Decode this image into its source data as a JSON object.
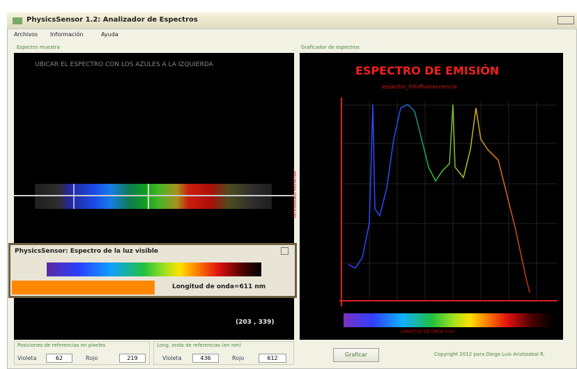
{
  "window": {
    "title": "PhysicsSensor 1.2: Analizador de Espectros"
  },
  "menu": [
    "Archivos",
    "Información",
    "Ayuda"
  ],
  "sample_panel": {
    "label": "Espectro muestra",
    "instruction": "UBICAR EL ESPECTRO CON LOS AZULES A LA IZQUIERDA",
    "coordinates": "(203 , 339)"
  },
  "popup": {
    "title": "PhysicsSensor: Espectro de la luz visible",
    "wavelength": "Longitud de onda=611 nm"
  },
  "graph_panel": {
    "label": "Graficador de espectros",
    "title": "ESPECTRO DE EMISIÓN",
    "subtitle": "espectro_fotofluorescencia",
    "y_label": "INTENSIDAD RELATIVA",
    "x_label": "LONGITUD DE ONDA (nm)"
  },
  "pixel_refs": {
    "label": "Posiciones de referencias en pixeles",
    "violet_label": "Violeta",
    "violet": 62,
    "red_label": "Rojo",
    "red": 219
  },
  "wavelength_refs": {
    "label": "Long. onda de referencias (en nm)",
    "violet_label": "Violeta",
    "violet": 436,
    "red_label": "Rojo",
    "red": 612
  },
  "button": "Graficar",
  "copyright": "Copyright 2012 para Diego Luis Aristizabal R."
}
